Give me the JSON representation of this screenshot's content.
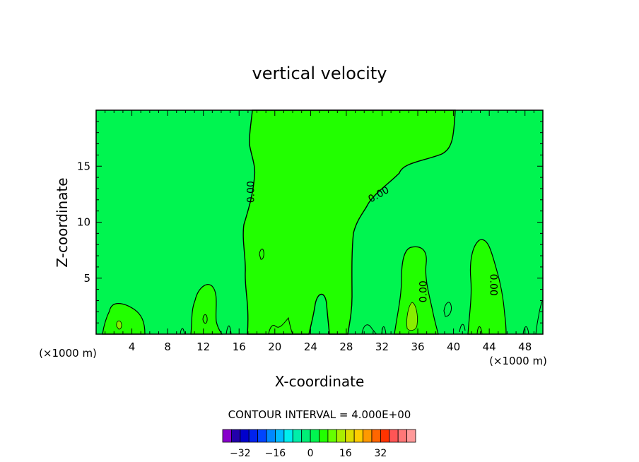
{
  "chart_data": {
    "type": "contour",
    "title": "vertical velocity",
    "xlabel": "X-coordinate",
    "ylabel": "Z-coordinate",
    "x_unit": "(×1000 m)",
    "y_unit": "(×1000 m)",
    "xlim": [
      0,
      50
    ],
    "ylim": [
      0,
      20
    ],
    "x_ticks": [
      4,
      8,
      12,
      16,
      20,
      24,
      28,
      32,
      36,
      40,
      44,
      48
    ],
    "y_ticks": [
      5,
      10,
      15
    ],
    "contour_interval_text": "CONTOUR INTERVAL = 4.000E+00",
    "contour_labels": [
      {
        "text": "0.00",
        "x": 17.3,
        "z": 12.7,
        "rotate": -90
      },
      {
        "text": "0.00",
        "x": 31.6,
        "z": 12.5,
        "rotate": -30
      },
      {
        "text": "0.00",
        "x": 36.6,
        "z": 3.8,
        "rotate": -90
      },
      {
        "text": "0.00",
        "x": 44.5,
        "z": 4.4,
        "rotate": 90
      }
    ],
    "background_color": "#00f550",
    "positive_region_color": "#22ff00",
    "strong_positive_color": "#88ee00",
    "colorbar": {
      "colors": [
        "#8800cc",
        "#2200aa",
        "#0000cc",
        "#0022ee",
        "#0044ff",
        "#0088ff",
        "#00bbff",
        "#00eeee",
        "#00eeaa",
        "#00ee77",
        "#00f550",
        "#22ff00",
        "#66ff00",
        "#aaee00",
        "#dddd00",
        "#ffcc00",
        "#ff9900",
        "#ff6600",
        "#ff3300",
        "#ff5555",
        "#ff7777",
        "#ff9999"
      ],
      "tick_labels": [
        "−32",
        "−16",
        "0",
        "16",
        "32"
      ],
      "tick_values": [
        -32,
        -16,
        0,
        16,
        32
      ],
      "range": [
        -40,
        48
      ]
    }
  }
}
